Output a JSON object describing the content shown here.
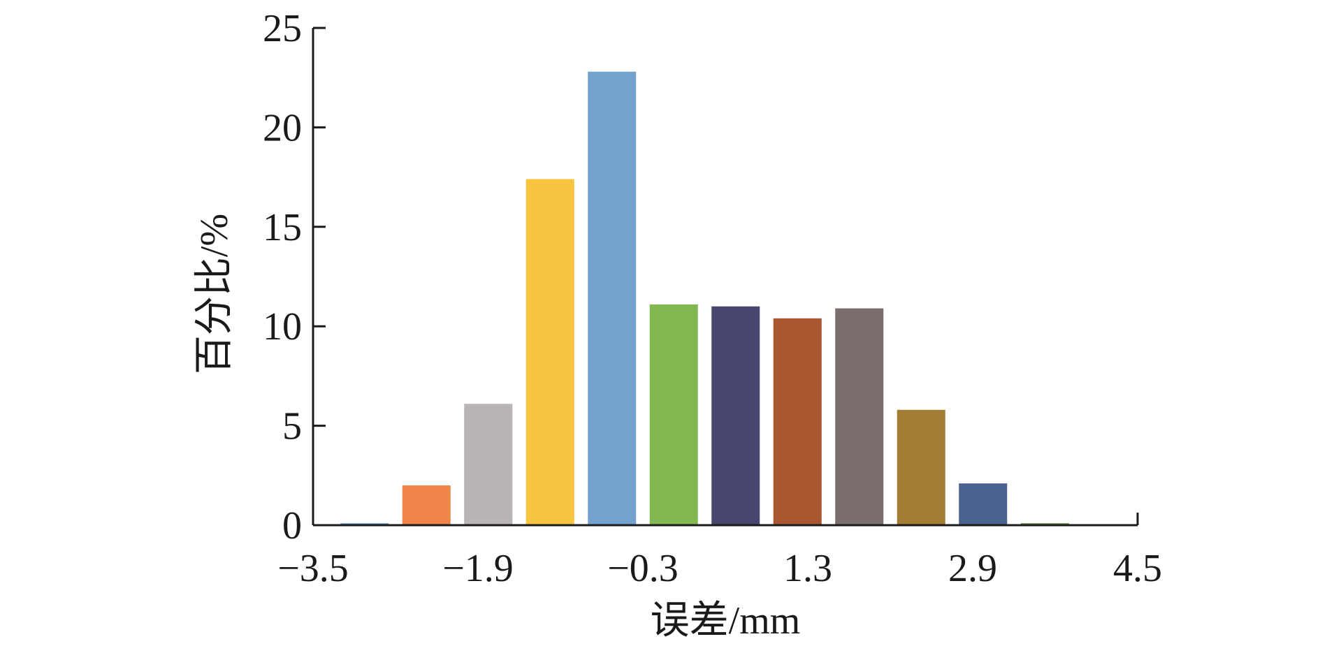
{
  "chart_data": {
    "type": "bar",
    "xlabel": "误差/mm",
    "ylabel": "百分比/%",
    "xlim": [
      -3.5,
      4.5
    ],
    "ylim": [
      0,
      25
    ],
    "x_ticks": [
      "−3.5",
      "−1.9",
      "−0.3",
      "1.3",
      "2.9",
      "4.5"
    ],
    "y_ticks": [
      "0",
      "5",
      "10",
      "15",
      "20",
      "25"
    ],
    "grid": false,
    "bins": [
      {
        "x": -3.0,
        "value": 0.1,
        "color": "#6f9fd0"
      },
      {
        "x": -2.4,
        "value": 2.0,
        "color": "#f0854a"
      },
      {
        "x": -1.8,
        "value": 6.1,
        "color": "#b8b5b4"
      },
      {
        "x": -1.2,
        "value": 17.4,
        "color": "#f9c440"
      },
      {
        "x": -0.6,
        "value": 22.8,
        "color": "#74a2cf"
      },
      {
        "x": 0.0,
        "value": 11.1,
        "color": "#81b852"
      },
      {
        "x": 0.6,
        "value": 11.0,
        "color": "#46466f"
      },
      {
        "x": 1.2,
        "value": 10.4,
        "color": "#a9552f"
      },
      {
        "x": 1.8,
        "value": 10.9,
        "color": "#7b6f6d"
      },
      {
        "x": 2.4,
        "value": 5.8,
        "color": "#a17c33"
      },
      {
        "x": 3.0,
        "value": 2.1,
        "color": "#4a628e"
      },
      {
        "x": 3.6,
        "value": 0.1,
        "color": "#6a9a4a"
      }
    ]
  }
}
